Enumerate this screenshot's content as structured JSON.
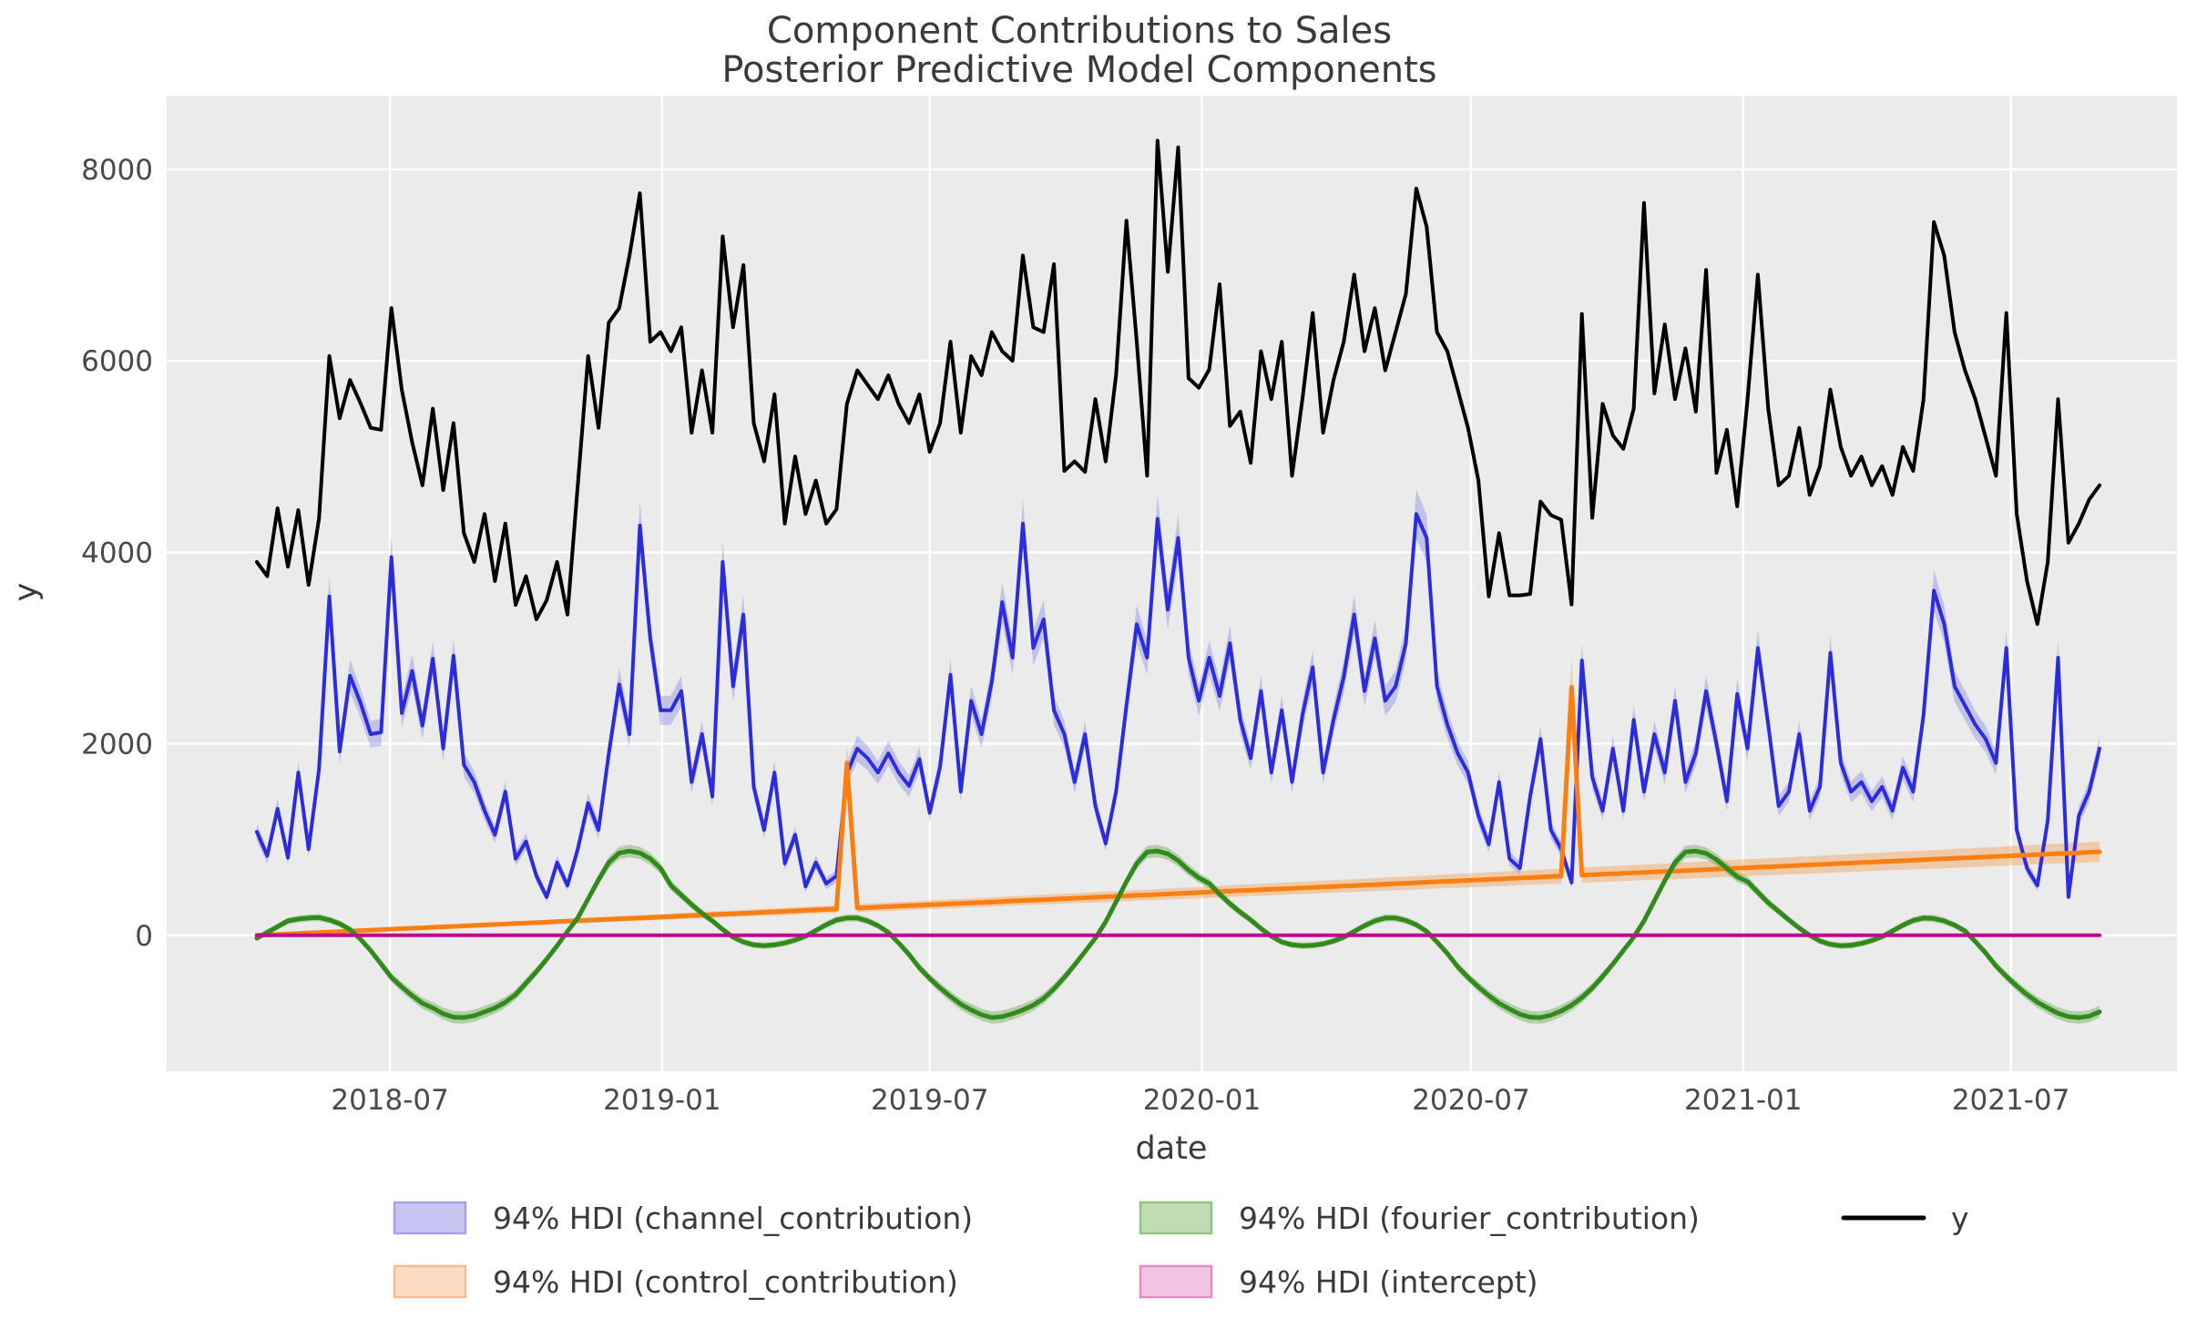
{
  "title": {
    "line1": "Component Contributions to Sales",
    "line2": "Posterior Predictive Model Components"
  },
  "axes": {
    "xlabel": "date",
    "ylabel": "y",
    "y_tick_values": [
      0,
      2000,
      4000,
      6000,
      8000
    ],
    "y_tick_labels": [
      "0",
      "2000",
      "4000",
      "6000",
      "8000"
    ],
    "x_ticks": [
      {
        "label": "2018-07",
        "date": "2018-07-01"
      },
      {
        "label": "2019-01",
        "date": "2019-01-01"
      },
      {
        "label": "2019-07",
        "date": "2019-07-01"
      },
      {
        "label": "2020-01",
        "date": "2020-01-01"
      },
      {
        "label": "2020-07",
        "date": "2020-07-01"
      },
      {
        "label": "2021-01",
        "date": "2021-01-01"
      },
      {
        "label": "2021-07",
        "date": "2021-07-01"
      }
    ]
  },
  "colors": {
    "background": "#ffffff",
    "plot_bg": "#ebebeb",
    "grid": "#ffffff",
    "y_line": "#000000",
    "channel_line": "#2c2cdc",
    "channel_band": "rgba(70,70,225,0.25)",
    "control_line": "#f97f12",
    "control_band": "rgba(248,127,18,0.30)",
    "fourier_line": "#318a1b",
    "fourier_band": "rgba(62,150,32,0.32)",
    "intercept_line": "#bf0a8c",
    "intercept_band": "rgba(225,70,175,0.25)"
  },
  "legend": [
    {
      "key": "channel",
      "label": "94% HDI (channel_contribution)",
      "patch_fill": "#c7c6f2",
      "patch_stroke": "#a3a1ec"
    },
    {
      "key": "control",
      "label": "94% HDI (control_contribution)",
      "patch_fill": "#fbdcc3",
      "patch_stroke": "#f7bb8c"
    },
    {
      "key": "fourier",
      "label": "94% HDI (fourier_contribution)",
      "patch_fill": "#c0dcb2",
      "patch_stroke": "#90c47e"
    },
    {
      "key": "intercept",
      "label": "94% HDI (intercept)",
      "patch_fill": "#f2c4e1",
      "patch_stroke": "#e38cc3"
    },
    {
      "key": "y",
      "label": "y"
    }
  ],
  "chart_data": {
    "type": "line",
    "title": "Component Contributions to Sales\nPosterior Predictive Model Components",
    "xlabel": "date",
    "ylabel": "y",
    "grid": true,
    "legend_position": "bottom",
    "start_date": "2018-04-02",
    "freq_days": 7,
    "n_points": 179,
    "ylim": [
      -1420,
      8770
    ],
    "series": [
      {
        "name": "channel_contribution",
        "kind": "band-line",
        "line_color_key": "channel_line",
        "band_color_key": "channel_band",
        "hdi": {
          "abs": 35,
          "rel": 0.05
        },
        "values": [
          1080,
          830,
          1320,
          810,
          1700,
          900,
          1730,
          3540,
          1920,
          2710,
          2430,
          2100,
          2120,
          3950,
          2320,
          2760,
          2190,
          2890,
          1950,
          2920,
          1780,
          1600,
          1300,
          1050,
          1500,
          800,
          980,
          620,
          400,
          760,
          520,
          900,
          1380,
          1100,
          1900,
          2620,
          2100,
          4280,
          3100,
          2350,
          2350,
          2550,
          1600,
          2100,
          1450,
          3900,
          2600,
          3350,
          1550,
          1100,
          1700,
          750,
          1050,
          510,
          760,
          540,
          620,
          1690,
          1950,
          1850,
          1700,
          1900,
          1700,
          1560,
          1840,
          1280,
          1760,
          2720,
          1500,
          2450,
          2100,
          2650,
          3480,
          2900,
          4300,
          3000,
          3300,
          2350,
          2100,
          1600,
          2100,
          1350,
          960,
          1500,
          2400,
          3250,
          2900,
          4350,
          3400,
          4150,
          2900,
          2450,
          2900,
          2500,
          3050,
          2250,
          1850,
          2550,
          1700,
          2350,
          1600,
          2300,
          2800,
          1700,
          2250,
          2700,
          3350,
          2550,
          3100,
          2450,
          2600,
          3050,
          4400,
          4150,
          2600,
          2200,
          1900,
          1700,
          1250,
          950,
          1600,
          800,
          700,
          1450,
          2050,
          1100,
          900,
          550,
          2870,
          1650,
          1300,
          1950,
          1300,
          2250,
          1500,
          2100,
          1700,
          2450,
          1600,
          1900,
          2550,
          2000,
          1400,
          2520,
          1950,
          3000,
          2200,
          1350,
          1500,
          2100,
          1300,
          1550,
          2950,
          1800,
          1500,
          1600,
          1400,
          1550,
          1300,
          1750,
          1500,
          2300,
          3600,
          3250,
          2600,
          2400,
          2200,
          2050,
          1800,
          3000,
          1100,
          700,
          520,
          1200,
          2900,
          400,
          1250,
          1500,
          1950
        ]
      },
      {
        "name": "control_contribution",
        "kind": "band-line",
        "line_color_key": "control_line",
        "band_color_key": "control_band",
        "hdi": {
          "abs": 10,
          "rel": 0.11
        },
        "values": [
          0,
          5,
          10,
          15,
          20,
          25,
          29,
          34,
          39,
          44,
          49,
          54,
          59,
          64,
          69,
          74,
          78,
          83,
          88,
          93,
          98,
          103,
          108,
          113,
          118,
          123,
          127,
          132,
          137,
          142,
          147,
          152,
          157,
          162,
          167,
          172,
          176,
          181,
          186,
          191,
          196,
          201,
          206,
          211,
          216,
          221,
          225,
          230,
          235,
          240,
          245,
          250,
          255,
          260,
          265,
          270,
          274,
          1800,
          284,
          289,
          294,
          299,
          304,
          309,
          314,
          319,
          323,
          328,
          333,
          338,
          343,
          348,
          353,
          358,
          363,
          368,
          372,
          377,
          382,
          387,
          392,
          397,
          402,
          407,
          412,
          417,
          421,
          426,
          431,
          436,
          441,
          446,
          451,
          456,
          461,
          466,
          470,
          475,
          480,
          485,
          490,
          495,
          500,
          505,
          510,
          515,
          519,
          524,
          529,
          534,
          539,
          544,
          549,
          554,
          559,
          564,
          568,
          573,
          578,
          583,
          588,
          593,
          598,
          603,
          608,
          613,
          617,
          2590,
          627,
          632,
          637,
          642,
          647,
          652,
          657,
          662,
          666,
          671,
          676,
          681,
          686,
          691,
          696,
          701,
          706,
          711,
          715,
          720,
          725,
          730,
          735,
          740,
          745,
          750,
          755,
          760,
          764,
          769,
          774,
          779,
          784,
          789,
          794,
          799,
          804,
          808,
          813,
          818,
          823,
          828,
          833,
          838,
          843,
          848,
          853,
          857,
          862,
          867,
          872
        ]
      },
      {
        "name": "fourier_contribution",
        "kind": "band-line",
        "line_color_key": "fourier_line",
        "band_color_key": "fourier_band",
        "hdi": {
          "abs": 30,
          "rel": 0.04
        },
        "values": [
          -30,
          30,
          90,
          150,
          170,
          180,
          185,
          160,
          120,
          60,
          -40,
          -160,
          -300,
          -440,
          -540,
          -630,
          -710,
          -760,
          -820,
          -855,
          -860,
          -840,
          -800,
          -760,
          -700,
          -620,
          -500,
          -380,
          -250,
          -110,
          40,
          180,
          380,
          580,
          760,
          860,
          880,
          860,
          800,
          700,
          520,
          420,
          320,
          230,
          150,
          60,
          -20,
          -70,
          -100,
          -110,
          -100,
          -80,
          -50,
          -10,
          50,
          110,
          160,
          180,
          180,
          150,
          100,
          30,
          -80,
          -200,
          -340,
          -450,
          -550,
          -640,
          -720,
          -780,
          -830,
          -860,
          -850,
          -820,
          -780,
          -730,
          -660,
          -560,
          -440,
          -310,
          -170,
          -30,
          140,
          350,
          560,
          750,
          870,
          880,
          850,
          780,
          680,
          600,
          540,
          430,
          330,
          240,
          160,
          70,
          -10,
          -70,
          -100,
          -110,
          -105,
          -90,
          -60,
          -20,
          40,
          100,
          150,
          180,
          180,
          155,
          110,
          40,
          -70,
          -190,
          -330,
          -440,
          -540,
          -630,
          -710,
          -770,
          -825,
          -855,
          -860,
          -835,
          -790,
          -730,
          -650,
          -550,
          -430,
          -300,
          -160,
          -20,
          150,
          360,
          570,
          760,
          870,
          880,
          855,
          790,
          700,
          610,
          560,
          450,
          340,
          250,
          160,
          75,
          0,
          -60,
          -95,
          -110,
          -105,
          -85,
          -55,
          -15,
          45,
          105,
          155,
          180,
          175,
          150,
          105,
          45,
          -65,
          -185,
          -320,
          -430,
          -530,
          -620,
          -700,
          -760,
          -815,
          -850,
          -860,
          -845,
          -800
        ]
      },
      {
        "name": "intercept",
        "kind": "band-line",
        "line_color_key": "intercept_line",
        "band_color_key": "intercept_band",
        "hdi": {
          "abs": 8,
          "rel": 0
        },
        "constant": 0
      },
      {
        "name": "y",
        "kind": "line",
        "line_color_key": "y_line",
        "values": [
          3900,
          3750,
          4460,
          3850,
          4440,
          3660,
          4350,
          6050,
          5400,
          5800,
          5560,
          5300,
          5280,
          6550,
          5700,
          5150,
          4700,
          5500,
          4650,
          5350,
          4200,
          3900,
          4400,
          3700,
          4300,
          3450,
          3750,
          3300,
          3500,
          3900,
          3350,
          4700,
          6050,
          5300,
          6400,
          6550,
          7100,
          7750,
          6200,
          6300,
          6100,
          6350,
          5250,
          5900,
          5250,
          7300,
          6350,
          7000,
          5350,
          4950,
          5650,
          4300,
          5000,
          4400,
          4750,
          4300,
          4450,
          5550,
          5900,
          5750,
          5600,
          5850,
          5550,
          5350,
          5650,
          5050,
          5350,
          6200,
          5250,
          6050,
          5850,
          6300,
          6100,
          6000,
          7100,
          6350,
          6300,
          7010,
          4850,
          4950,
          4840,
          5600,
          4950,
          5850,
          7465,
          6200,
          4800,
          8300,
          6930,
          8230,
          5820,
          5720,
          5910,
          6800,
          5320,
          5470,
          4935,
          6100,
          5600,
          6200,
          4800,
          5600,
          6500,
          5250,
          5800,
          6200,
          6900,
          6100,
          6550,
          5900,
          6300,
          6700,
          7800,
          7400,
          6300,
          6100,
          5700,
          5300,
          4750,
          3540,
          4200,
          3550,
          3550,
          3565,
          4530,
          4390,
          4340,
          3455,
          6490,
          4360,
          5550,
          5220,
          5080,
          5500,
          7650,
          5660,
          6380,
          5600,
          6130,
          5470,
          6950,
          4830,
          5280,
          4480,
          5600,
          6900,
          5500,
          4700,
          4800,
          5300,
          4600,
          4900,
          5700,
          5100,
          4800,
          5000,
          4700,
          4900,
          4600,
          5100,
          4850,
          5600,
          7450,
          7100,
          6300,
          5900,
          5600,
          5200,
          4800,
          6500,
          4400,
          3700,
          3250,
          3900,
          5600,
          4100,
          4300,
          4550,
          4700
        ]
      }
    ]
  }
}
